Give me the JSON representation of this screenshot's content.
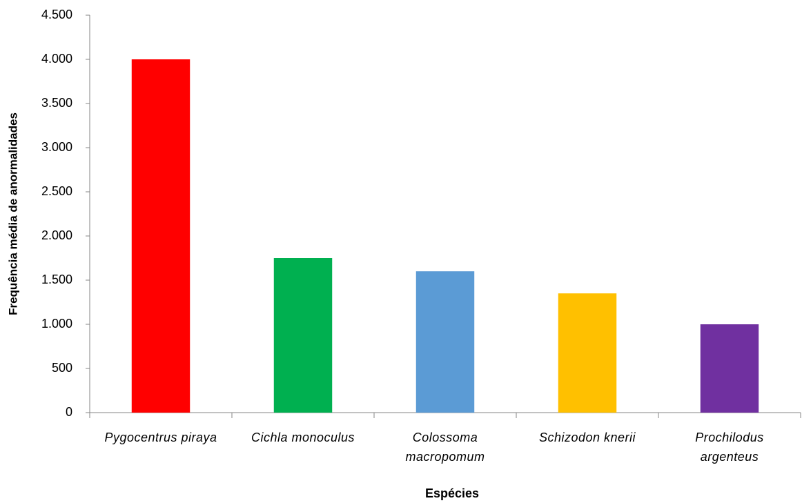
{
  "chart_data": {
    "type": "bar",
    "x_label": "Espécies",
    "y_label": "Frequência média de anormalidades",
    "categories": [
      "Pygocentrus piraya",
      "Cichla monoculus",
      "Colossoma\nmacropomum",
      "Schizodon knerii",
      "Prochilodus\nargenteus"
    ],
    "values": [
      4000,
      1750,
      1600,
      1350,
      1000
    ],
    "colors": [
      "#ff0000",
      "#00b050",
      "#5b9bd5",
      "#ffc000",
      "#7030a0"
    ],
    "ylim": [
      0,
      4500
    ],
    "yticks": [
      0,
      500,
      {
        "value": 1000,
        "label": "1.000"
      },
      {
        "value": 1500,
        "label": "1.500"
      },
      {
        "value": 2000,
        "label": "2.000"
      },
      {
        "value": 2500,
        "label": "2.500"
      },
      {
        "value": 3000,
        "label": "3.000"
      },
      {
        "value": 3500,
        "label": "3.500"
      },
      {
        "value": 4000,
        "label": "4.000"
      },
      {
        "value": 4500,
        "label": "4.500"
      }
    ],
    "grid": false
  }
}
